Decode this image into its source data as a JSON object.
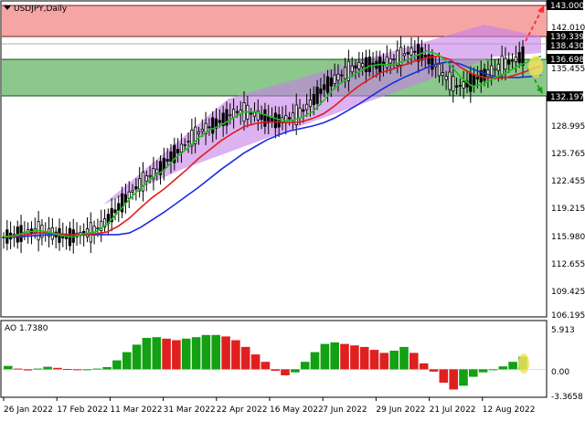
{
  "main_chart": {
    "symbol": "USDJPY,Daily",
    "y_ticks": [
      "142.010",
      "138.735",
      "135.455",
      "132.197",
      "128.995",
      "125.765",
      "122.455",
      "119.215",
      "115.980",
      "112.655",
      "109.425",
      "106.195"
    ],
    "price_labels": {
      "target_high": "143.000",
      "resistance": "139.339",
      "current": "138.430",
      "support_mid": "136.698",
      "support_low": "132.197"
    },
    "colors": {
      "resistance_zone": "#f6a5a5",
      "support_zone": "#8cc78c",
      "channel": "#c77ee8",
      "ma_fast": "#1fbf1f",
      "ma_mid": "#e01c1c",
      "ma_slow": "#1b2de0",
      "candles": "#000000",
      "bull_arrow": "#ff2a2a",
      "bear_arrow": "#16a016",
      "highlight": "#f2e35a"
    }
  },
  "oscillator": {
    "title": "AO 1.7380",
    "y_ticks": [
      "5.913",
      "0.00",
      "-3.3658"
    ]
  },
  "x_axis": {
    "labels": [
      "26 Jan 2022",
      "17 Feb 2022",
      "11 Mar 2022",
      "31 Mar 2022",
      "22 Apr 2022",
      "16 May 2022",
      "7 Jun 2022",
      "29 Jun 2022",
      "21 Jul 2022",
      "12 Aug 2022"
    ]
  },
  "chart_data": [
    {
      "type": "line",
      "title": "USDJPY,Daily",
      "ylim": [
        105.3,
        143.7
      ],
      "annotations": [
        {
          "type": "zone",
          "from": 139.339,
          "to": 143.0
        },
        {
          "type": "zone",
          "from": 132.197,
          "to": 136.698
        },
        {
          "type": "level",
          "value": 138.43
        }
      ],
      "series": [
        {
          "values": [
            115.0,
            115.2,
            115.6,
            115.8,
            115.6,
            115.2,
            115.0,
            115.4,
            115.6,
            116.5,
            118.0,
            119.6,
            121.0,
            122.2,
            123.1,
            124.6,
            125.7,
            127.0,
            128.0,
            128.6,
            129.4,
            130.2,
            130.2,
            129.8,
            129.3,
            129.1,
            129.5,
            130.2,
            131.6,
            133.2,
            134.2,
            135.0,
            135.8,
            136.0,
            135.9,
            136.4,
            137.0,
            137.6,
            137.2,
            136.0,
            134.4,
            133.3,
            133.6,
            134.4,
            135.0,
            135.8,
            136.4,
            137.0
          ]
        },
        {
          "values": [
            115.0,
            115.1,
            115.3,
            115.5,
            115.5,
            115.4,
            115.3,
            115.3,
            115.4,
            115.6,
            116.3,
            117.3,
            118.6,
            119.8,
            120.8,
            122.0,
            123.2,
            124.5,
            125.6,
            126.7,
            127.6,
            128.4,
            128.8,
            129.0,
            129.0,
            128.9,
            129.0,
            129.4,
            130.0,
            131.0,
            132.2,
            133.3,
            134.2,
            135.0,
            135.4,
            135.9,
            136.4,
            136.8,
            137.0,
            136.6,
            135.6,
            134.8,
            134.4,
            134.3,
            134.4,
            134.8,
            135.3,
            135.8
          ]
        },
        {
          "values": [
            115.0,
            115.0,
            115.1,
            115.2,
            115.3,
            115.3,
            115.3,
            115.3,
            115.3,
            115.3,
            115.3,
            115.5,
            116.2,
            117.1,
            118.0,
            119.0,
            120.0,
            121.0,
            122.1,
            123.2,
            124.2,
            125.2,
            126.0,
            126.8,
            127.4,
            127.9,
            128.2,
            128.5,
            128.9,
            129.5,
            130.3,
            131.1,
            132.0,
            132.9,
            133.7,
            134.4,
            135.0,
            135.6,
            136.1,
            136.3,
            136.0,
            135.4,
            134.9,
            134.5,
            134.4,
            134.4,
            134.5,
            134.7
          ]
        }
      ]
    },
    {
      "type": "bar",
      "title": "AO 1.7380",
      "ylim": [
        -3.3658,
        5.913
      ],
      "values": [
        0.45,
        0.1,
        -0.15,
        0.1,
        0.35,
        0.2,
        0.05,
        -0.1,
        0.0,
        0.1,
        0.3,
        1.2,
        2.3,
        3.3,
        4.2,
        4.3,
        4.1,
        3.9,
        4.1,
        4.3,
        4.6,
        4.6,
        4.4,
        3.9,
        3.0,
        2.0,
        1.0,
        -0.2,
        -0.8,
        -0.4,
        1.0,
        2.3,
        3.4,
        3.6,
        3.4,
        3.2,
        3.0,
        2.6,
        2.2,
        2.5,
        3.0,
        2.2,
        0.8,
        -0.3,
        -1.8,
        -2.7,
        -2.2,
        -1.0,
        -0.4,
        0.0,
        0.4,
        1.0,
        1.7
      ]
    }
  ]
}
